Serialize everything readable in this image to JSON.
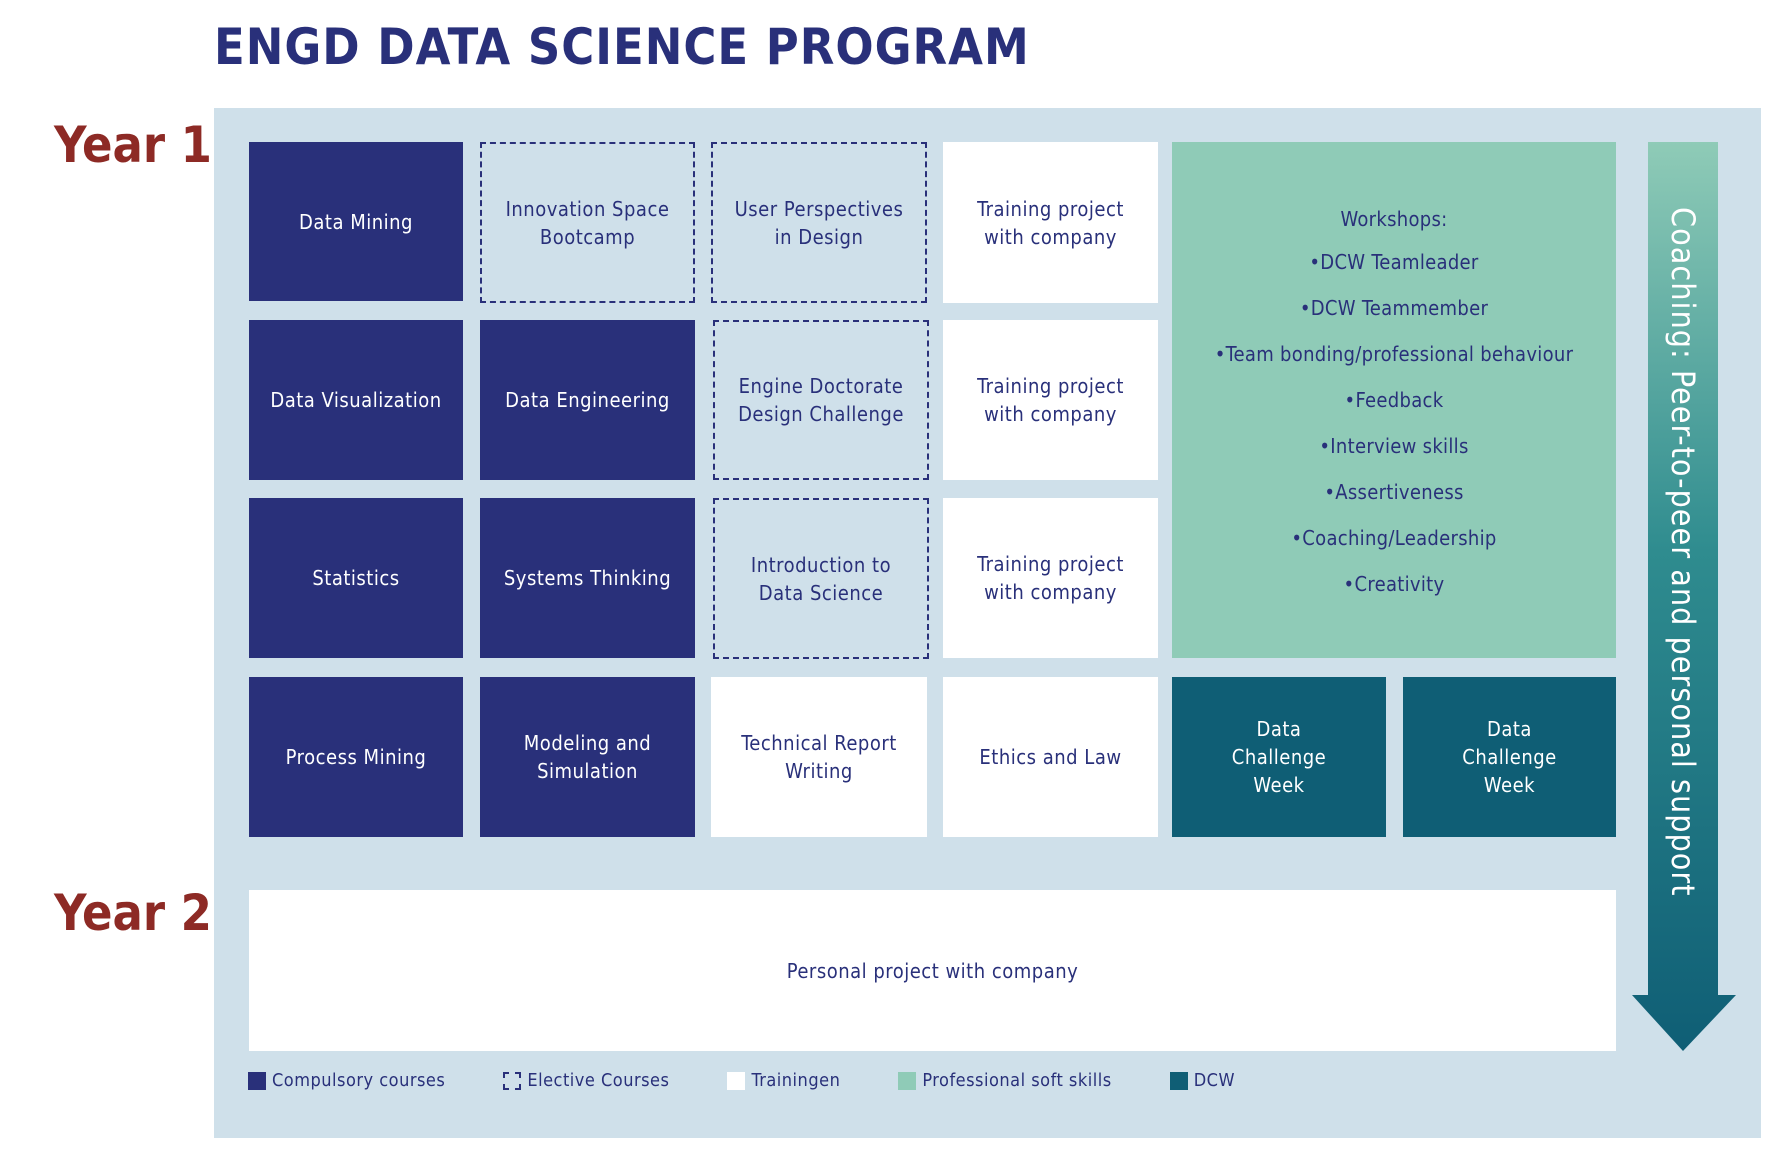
{
  "title": "ENGD DATA SCIENCE PROGRAM",
  "year1_label": "Year 1",
  "year2_label": "Year 2",
  "colors": {
    "compulsory": "#29307a",
    "elective_bg": "#cfe0ea",
    "training": "#ffffff",
    "soft_skills": "#8fcbb7",
    "dcw": "#0f5e75",
    "year_label": "#8d2a25",
    "panel": "#cfe0ea"
  },
  "grid": {
    "col1": {
      "r1": "Data Mining",
      "r2": "Data Visualization",
      "r3": "Statistics",
      "r4": "Process Mining"
    },
    "col2": {
      "r1": "Innovation Space\nBootcamp",
      "r2": "Data Engineering",
      "r3": "Systems Thinking",
      "r4": "Modeling and\nSimulation"
    },
    "col3": {
      "r1": "User Perspectives\nin Design",
      "r2": "Engine Doctorate\nDesign Challenge",
      "r3": "Introduction to\nData Science",
      "r4": "Technical Report\nWriting"
    },
    "col4": {
      "r1": "Training project\nwith company",
      "r2": "Training project\nwith company",
      "r3": "Training project\nwith company",
      "r4": "Ethics and Law"
    }
  },
  "workshops": {
    "title": "Workshops:",
    "items": [
      "DCW Teamleader",
      "DCW Teammember",
      "Team bonding/professional behaviour",
      "Feedback",
      "Interview skills",
      "Assertiveness",
      "Coaching/Leadership",
      "Creativity"
    ]
  },
  "dcw": {
    "left": "Data\nChallenge\nWeek",
    "right": "Data\nChallenge\nWeek"
  },
  "year2_project": "Personal project with company",
  "coaching": "Coaching: Peer-to-peer and personal support",
  "legend": {
    "compulsory": "Compulsory courses",
    "elective": "Elective Courses",
    "training": "Trainingen",
    "soft_skills": "Professional soft skills",
    "dcw": "DCW"
  }
}
